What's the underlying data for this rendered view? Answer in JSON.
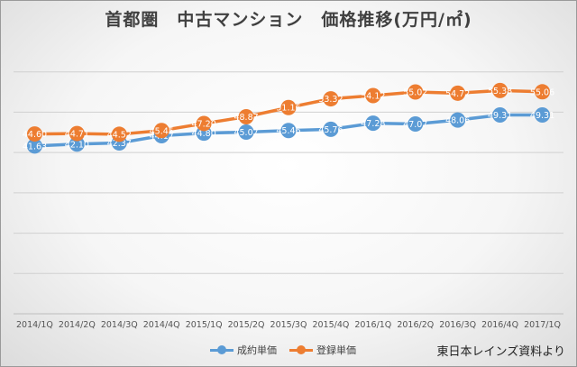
{
  "chart_data": {
    "type": "line",
    "title": "首都圏　中古マンション　価格推移(万円/㎡)",
    "categories": [
      "2014/1Q",
      "2014/2Q",
      "2014/3Q",
      "2014/4Q",
      "2015/1Q",
      "2015/2Q",
      "2015/3Q",
      "2015/4Q",
      "2016/1Q",
      "2016/2Q",
      "2016/3Q",
      "2016/4Q",
      "2017/1Q"
    ],
    "series": [
      {
        "name": "成約単価",
        "color": "#5b9bd5",
        "values": [
          41.63,
          42.1,
          42.37,
          44.17,
          44.8,
          45.07,
          45.46,
          45.76,
          47.28,
          47.07,
          48.06,
          49.31,
          49.31
        ],
        "labels": [
          "41.63",
          "42.10",
          "42.37",
          "44.17",
          "44.80",
          "45.07",
          "45.46",
          "45.76",
          "47.28",
          "47.07",
          "48.06",
          "49.31",
          "49.31"
        ]
      },
      {
        "name": "登録単価",
        "color": "#ed7d31",
        "values": [
          44.6,
          44.71,
          44.52,
          45.45,
          47.2,
          48.87,
          51.16,
          53.32,
          54.12,
          55.02,
          54.72,
          55.38,
          55.06
        ],
        "labels": [
          "44.60",
          "44.71",
          "44.52",
          "45.45",
          "47.20",
          "48.87",
          "51.16",
          "53.32",
          "54.12",
          "55.02",
          "54.72",
          "55.38",
          "55.06"
        ]
      }
    ],
    "ylim": [
      0,
      70
    ],
    "y_gridlines": [
      10,
      20,
      30,
      40,
      50,
      60
    ],
    "y_tick_labels_shown": false,
    "grid": true,
    "legend_position": "bottom"
  },
  "source_note": "東日本レインズ資料より"
}
